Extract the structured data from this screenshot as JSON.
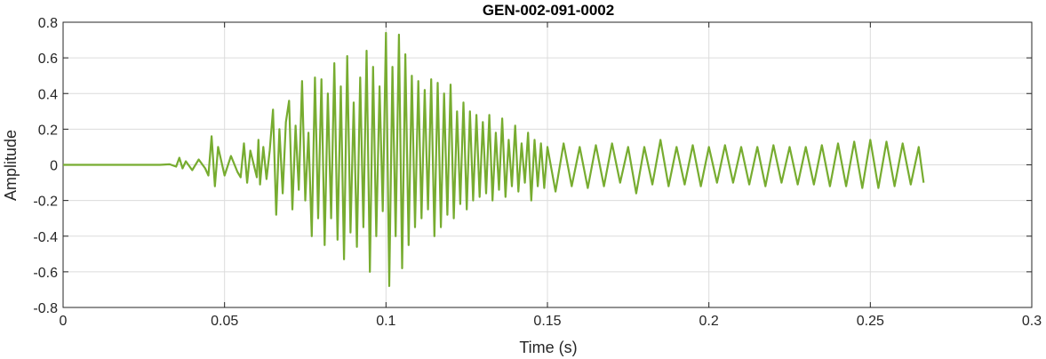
{
  "chart_data": {
    "type": "line",
    "title": "GEN-002-091-0002",
    "xlabel": "Time (s)",
    "ylabel": "Amplitude",
    "xlim": [
      0,
      0.3
    ],
    "ylim": [
      -0.8,
      0.8
    ],
    "xticks": [
      0,
      0.05,
      0.1,
      0.15,
      0.2,
      0.25,
      0.3
    ],
    "xtick_labels": [
      "0",
      "0.05",
      "0.1",
      "0.15",
      "0.2",
      "0.25",
      "0.3"
    ],
    "yticks": [
      -0.8,
      -0.6,
      -0.4,
      -0.2,
      0,
      0.2,
      0.4,
      0.6,
      0.8
    ],
    "ytick_labels": [
      "-0.8",
      "-0.6",
      "-0.4",
      "-0.2",
      "0",
      "0.2",
      "0.4",
      "0.6",
      "0.8"
    ],
    "grid": true,
    "colors": {
      "line": "#77AC30",
      "grid": "#dcdcdc",
      "axes": "#262626"
    },
    "series": [
      {
        "x": [
          0,
          0.01,
          0.02,
          0.03,
          0.033,
          0.035,
          0.036,
          0.037,
          0.038,
          0.04,
          0.042,
          0.044,
          0.045,
          0.046,
          0.047,
          0.048,
          0.05,
          0.052,
          0.054,
          0.055,
          0.056,
          0.057,
          0.058,
          0.06,
          0.0605,
          0.061,
          0.062,
          0.063,
          0.064,
          0.065,
          0.066,
          0.067,
          0.068,
          0.069,
          0.07,
          0.071,
          0.072,
          0.073,
          0.074,
          0.075,
          0.076,
          0.077,
          0.078,
          0.079,
          0.08,
          0.081,
          0.082,
          0.083,
          0.084,
          0.085,
          0.086,
          0.087,
          0.088,
          0.089,
          0.09,
          0.091,
          0.092,
          0.093,
          0.094,
          0.095,
          0.096,
          0.097,
          0.098,
          0.099,
          0.1,
          0.101,
          0.102,
          0.103,
          0.104,
          0.105,
          0.106,
          0.107,
          0.108,
          0.109,
          0.11,
          0.111,
          0.112,
          0.113,
          0.114,
          0.115,
          0.116,
          0.117,
          0.118,
          0.119,
          0.12,
          0.121,
          0.122,
          0.123,
          0.124,
          0.125,
          0.126,
          0.127,
          0.128,
          0.129,
          0.13,
          0.131,
          0.132,
          0.133,
          0.134,
          0.135,
          0.136,
          0.137,
          0.138,
          0.139,
          0.14,
          0.141,
          0.142,
          0.143,
          0.144,
          0.145,
          0.146,
          0.147,
          0.148,
          0.149,
          0.15,
          0.1525,
          0.155,
          0.1575,
          0.16,
          0.1625,
          0.165,
          0.1675,
          0.17,
          0.1725,
          0.175,
          0.1775,
          0.18,
          0.1825,
          0.185,
          0.1875,
          0.19,
          0.1925,
          0.195,
          0.1975,
          0.2,
          0.2025,
          0.205,
          0.2075,
          0.21,
          0.2125,
          0.215,
          0.2175,
          0.22,
          0.2225,
          0.225,
          0.2275,
          0.23,
          0.2325,
          0.235,
          0.2375,
          0.24,
          0.2425,
          0.245,
          0.2475,
          0.25,
          0.2525,
          0.255,
          0.2575,
          0.26,
          0.2625,
          0.265,
          0.2665
        ],
        "y": [
          0,
          0,
          0,
          0,
          0.003,
          -0.01,
          0.04,
          -0.02,
          0.02,
          -0.03,
          0.03,
          -0.02,
          -0.06,
          0.16,
          -0.12,
          0.1,
          -0.06,
          0.05,
          -0.04,
          -0.07,
          0.12,
          -0.1,
          0.08,
          -0.07,
          0.14,
          -0.11,
          0.1,
          -0.08,
          0.08,
          0.31,
          -0.28,
          0.2,
          -0.16,
          0.24,
          0.36,
          -0.25,
          0.22,
          -0.14,
          0.47,
          -0.2,
          0.18,
          -0.4,
          0.49,
          -0.3,
          0.48,
          -0.45,
          0.4,
          -0.3,
          0.57,
          -0.42,
          0.44,
          -0.53,
          0.61,
          -0.38,
          0.35,
          -0.46,
          0.49,
          -0.35,
          0.64,
          -0.6,
          0.55,
          -0.4,
          0.44,
          -0.26,
          0.74,
          -0.68,
          0.55,
          -0.4,
          0.73,
          -0.58,
          0.62,
          -0.45,
          0.5,
          -0.35,
          0.47,
          -0.3,
          0.42,
          -0.25,
          0.48,
          -0.4,
          0.46,
          -0.35,
          0.4,
          -0.28,
          0.45,
          -0.3,
          0.3,
          -0.22,
          0.35,
          -0.25,
          0.3,
          -0.2,
          0.28,
          -0.18,
          0.24,
          -0.16,
          0.28,
          -0.2,
          0.18,
          -0.14,
          0.26,
          -0.18,
          0.14,
          -0.12,
          0.22,
          -0.15,
          0.12,
          -0.1,
          0.18,
          -0.2,
          0.14,
          -0.12,
          0.12,
          -0.13,
          0.1,
          -0.15,
          0.12,
          -0.12,
          0.1,
          -0.13,
          0.11,
          -0.12,
          0.12,
          -0.1,
          0.1,
          -0.16,
          0.1,
          -0.11,
          0.14,
          -0.12,
          0.1,
          -0.11,
          0.11,
          -0.12,
          0.1,
          -0.1,
          0.11,
          -0.1,
          0.1,
          -0.11,
          0.1,
          -0.12,
          0.11,
          -0.1,
          0.1,
          -0.11,
          0.1,
          -0.11,
          0.11,
          -0.12,
          0.12,
          -0.12,
          0.13,
          -0.13,
          0.14,
          -0.13,
          0.13,
          -0.12,
          0.12,
          -0.11,
          0.1,
          -0.1
        ]
      }
    ]
  }
}
